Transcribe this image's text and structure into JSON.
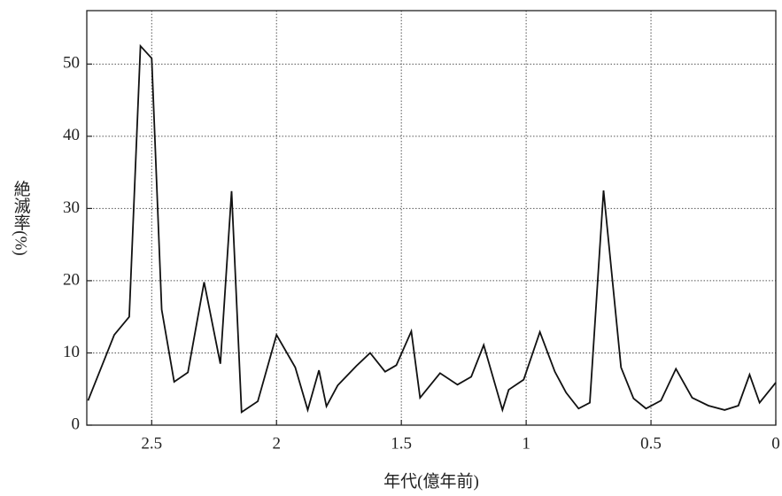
{
  "chart_data": {
    "type": "line",
    "x_label": "年代(億年前)",
    "y_label": "絶滅率(%)",
    "x": [
      2.755,
      2.65,
      2.59,
      2.545,
      2.5,
      2.46,
      2.41,
      2.355,
      2.29,
      2.225,
      2.18,
      2.14,
      2.075,
      2.0,
      1.925,
      1.875,
      1.83,
      1.8,
      1.755,
      1.68,
      1.625,
      1.565,
      1.52,
      1.46,
      1.425,
      1.345,
      1.275,
      1.22,
      1.17,
      1.095,
      1.07,
      1.01,
      0.945,
      0.885,
      0.84,
      0.79,
      0.745,
      0.69,
      0.62,
      0.57,
      0.52,
      0.46,
      0.4,
      0.335,
      0.27,
      0.205,
      0.15,
      0.105,
      0.065,
      0
    ],
    "series": [
      {
        "color": "#111111",
        "values": [
          3.4,
          12.5,
          15,
          52.5,
          50.8,
          16,
          6,
          7.3,
          19.8,
          8.5,
          32.4,
          1.8,
          3.3,
          12.5,
          8,
          2.1,
          7.6,
          2.6,
          5.5,
          8.2,
          10,
          7.4,
          8.3,
          13,
          3.8,
          7.2,
          5.6,
          6.7,
          11.1,
          2.1,
          4.9,
          6.3,
          12.9,
          7.4,
          4.5,
          2.3,
          3.1,
          32.5,
          8,
          3.7,
          2.3,
          3.4,
          7.8,
          3.8,
          2.7,
          2.1,
          2.7,
          7,
          3.1,
          5.9
        ]
      }
    ],
    "xlim": [
      2.76,
      0
    ],
    "xticks": [
      2.5,
      2,
      1.5,
      1,
      0.5,
      0
    ],
    "ylim": [
      0,
      57.4
    ],
    "yticks": [
      0,
      10,
      20,
      30,
      40,
      50
    ],
    "grid": true
  }
}
